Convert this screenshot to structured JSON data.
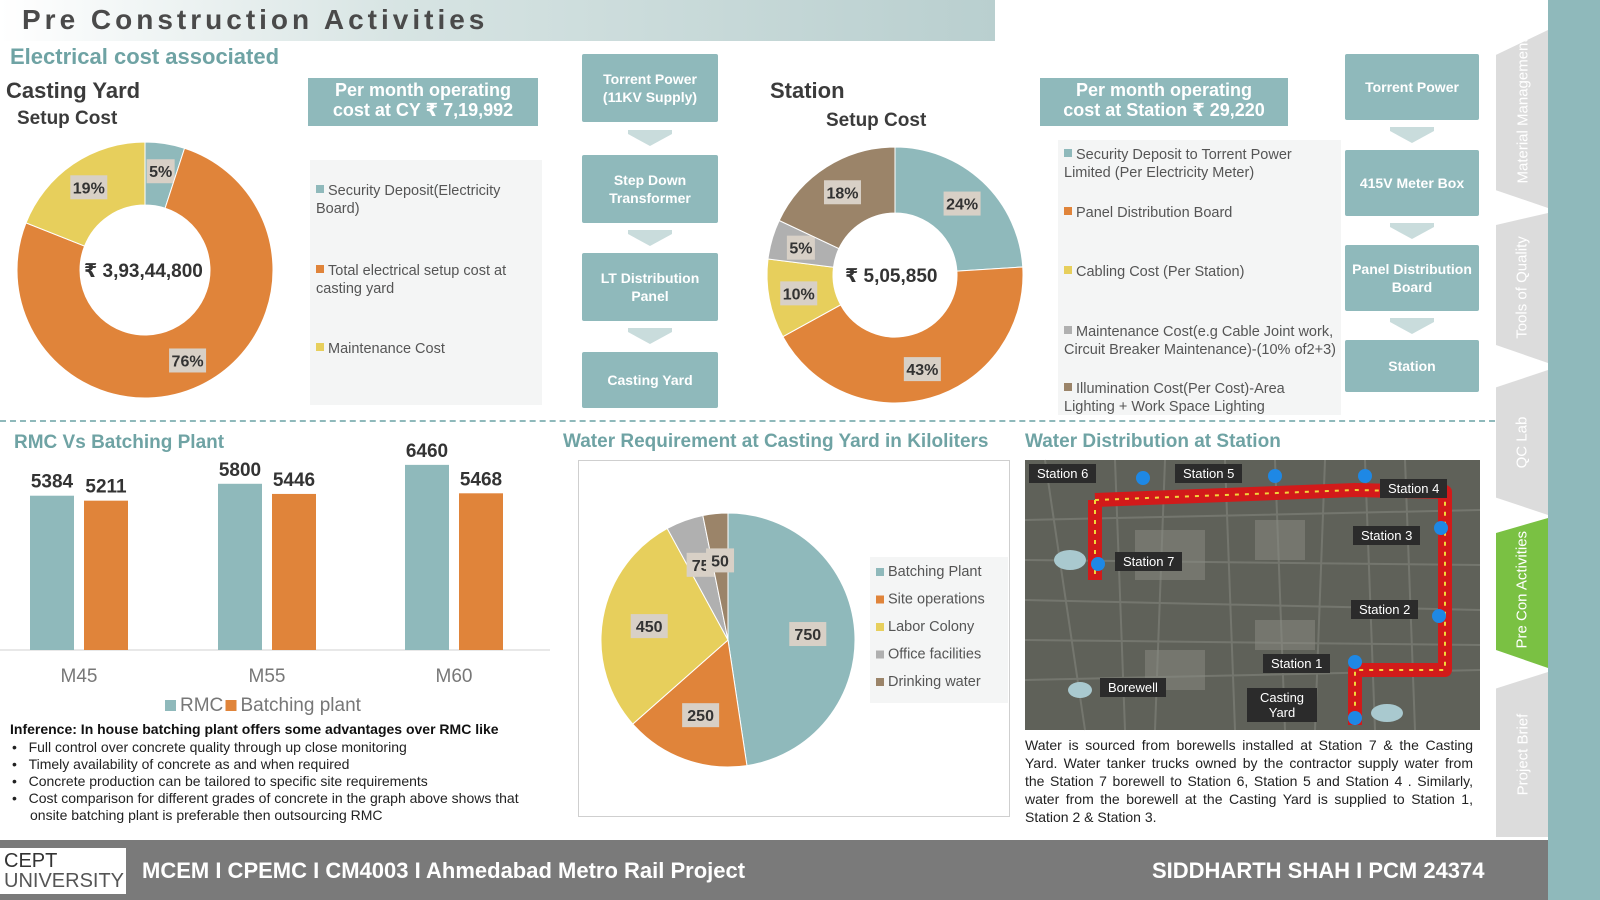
{
  "header": {
    "title": "Pre Construction Activities"
  },
  "electrical": {
    "heading": "Electrical cost associated",
    "cy": {
      "title": "Casting Yard",
      "subtitle": "Setup Cost",
      "center_value": "₹ 3,93,44,800",
      "op_cost_line1": "Per month operating",
      "op_cost_line2": "cost at CY ₹ 7,19,992",
      "legend": [
        "Security Deposit(Electricity Board)",
        "Total electrical setup cost at casting yard",
        "Maintenance Cost"
      ],
      "flow": [
        "Torrent Power (11KV Supply)",
        "Step Down Transformer",
        "LT Distribution Panel",
        "Casting Yard"
      ]
    },
    "station": {
      "title": "Station",
      "subtitle": "Setup Cost",
      "center_value": "₹ 5,05,850",
      "op_cost_line1": "Per month operating",
      "op_cost_line2": "cost at Station ₹ 29,220",
      "legend": [
        "Security Deposit to Torrent Power Limited (Per Electricity Meter)",
        "Panel Distribution Board",
        "Cabling Cost (Per Station)",
        "Maintenance Cost(e.g Cable Joint work, Circuit Breaker Maintenance)-(10% of2+3)",
        "Illumination Cost(Per Cost)-Area Lighting + Work Space Lighting"
      ],
      "flow": [
        "Torrent Power",
        "415V Meter Box",
        "Panel Distribution Board",
        "Station"
      ]
    }
  },
  "rmc": {
    "heading": "RMC Vs Batching Plant",
    "inference_title": "Inference: In house batching plant offers some advantages over RMC like",
    "bullets": [
      "Full control over concrete quality through up close monitoring",
      "Timely availability of concrete as and when required",
      "Concrete production can be tailored to specific site requirements",
      "Cost comparison for different grades of concrete in the graph above shows that onsite batching plant is preferable then outsourcing RMC"
    ]
  },
  "water": {
    "heading": "Water Requirement at Casting Yard in Kiloliters"
  },
  "distribution": {
    "heading": "Water Distribution at Station",
    "map_labels": [
      "Station 6",
      "Station 5",
      "Station 4",
      "Station 3",
      "Station 7",
      "Station 2",
      "Station 1",
      "Borewell",
      "Casting Yard"
    ],
    "description": "Water is sourced from borewells installed at Station 7 & the Casting Yard. Water tanker trucks owned by the contractor supply water from the Station 7 borewell to Station 6, Station 5 and Station 4 . Similarly, water from the borewell at the Casting Yard is supplied to Station 1, Station 2 & Station 3."
  },
  "sidebar": {
    "tabs": [
      "Material Management",
      "Tools of Quality",
      "QC Lab",
      "Pre Con Activities",
      "Project Brief"
    ],
    "active_tab": "Pre Con Activities"
  },
  "footer": {
    "logo_line1": "CEPT",
    "logo_line2": "UNIVERSITY",
    "course": "MCEM I CPEMC I CM4003 I Ahmedabad Metro Rail Project",
    "author": "SIDDHARTH SHAH I PCM 24374"
  },
  "colors": {
    "teal": "#8fb9bb",
    "orange": "#e0843a",
    "yellow": "#e7cf5c",
    "grey": "#b0b0b0",
    "brown": "#9b8469",
    "green": "#7ac143"
  },
  "chart_data": [
    {
      "type": "pie",
      "donut": true,
      "categories": [
        "Security Deposit(Electricity Board)",
        "Total electrical setup cost at casting yard",
        "Maintenance Cost"
      ],
      "values": [
        5,
        76,
        19
      ],
      "labels": [
        "5%",
        "76%",
        "19%"
      ],
      "colors": [
        "#8fb9bb",
        "#e0843a",
        "#e7cf5c"
      ]
    },
    {
      "type": "pie",
      "donut": true,
      "categories": [
        "Security Deposit to Torrent Power Limited (Per Electricity Meter)",
        "Panel Distribution Board",
        "Cabling Cost (Per Station)",
        "Maintenance Cost(e.g Cable Joint work, Circuit Breaker Maintenance)-(10% of2+3)",
        "Illumination Cost(Per Cost)-Area Lighting + Work Space Lighting"
      ],
      "values": [
        24,
        43,
        10,
        5,
        18
      ],
      "labels": [
        "24%",
        "43%",
        "10%",
        "5%",
        "18%"
      ],
      "colors": [
        "#8fb9bb",
        "#e0843a",
        "#e7cf5c",
        "#b0b0b0",
        "#9b8469"
      ]
    },
    {
      "type": "bar",
      "categories": [
        "M45",
        "M55",
        "M60"
      ],
      "series": [
        {
          "name": "RMC",
          "values": [
            5384,
            5800,
            6460
          ],
          "color": "#8fb9bb"
        },
        {
          "name": "Batching plant",
          "values": [
            5211,
            5446,
            5468
          ],
          "color": "#e0843a"
        }
      ],
      "ylim": [
        0,
        7000
      ],
      "legend_position": "bottom"
    },
    {
      "type": "pie",
      "categories": [
        "Batching Plant",
        "Site operations",
        "Labor Colony",
        "Office facilities",
        "Drinking water"
      ],
      "values": [
        750,
        250,
        450,
        75,
        50
      ],
      "colors": [
        "#8fb9bb",
        "#e0843a",
        "#e7cf5c",
        "#b0b0b0",
        "#9b8469"
      ],
      "legend_position": "right"
    }
  ]
}
